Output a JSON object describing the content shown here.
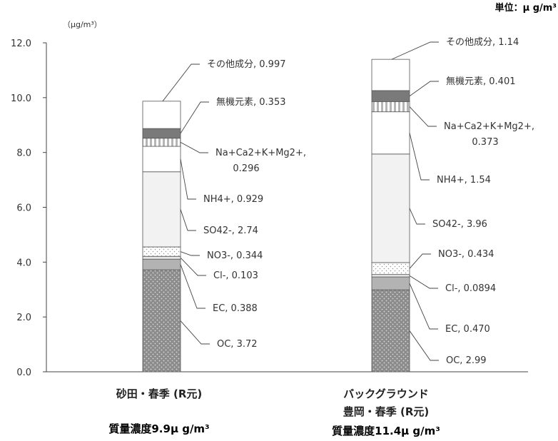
{
  "chart_data": {
    "type": "bar",
    "stacked": true,
    "y_unit_label": "（μg/m³）",
    "unit_label": "単位：μ g/m³",
    "ylim": [
      0,
      12
    ],
    "yticks": [
      "0.0",
      "2.0",
      "4.0",
      "6.0",
      "8.0",
      "10.0",
      "12.0"
    ],
    "categories": [
      {
        "label_lines": [
          "砂田・春季 (R元)"
        ],
        "mass_label": "質量濃度9.9μ g/m³"
      },
      {
        "label_lines": [
          "バックグラウンド",
          "豊岡・春季 (R元)"
        ],
        "mass_label": "質量濃度11.4μ g/m³"
      }
    ],
    "series": [
      {
        "name": "OC",
        "values": [
          3.72,
          2.99
        ],
        "labels": [
          "OC, 3.72",
          "OC, 2.99"
        ],
        "color": "#8c8c8c",
        "pattern": "dots"
      },
      {
        "name": "EC",
        "values": [
          0.388,
          0.47
        ],
        "labels": [
          "EC, 0.388",
          "EC, 0.470"
        ],
        "color": "#b3b3b3",
        "pattern": "none"
      },
      {
        "name": "Cl-",
        "values": [
          0.103,
          0.0894
        ],
        "labels": [
          "Cl-, 0.103",
          "Cl-, 0.0894"
        ],
        "color": "#e6e6e6",
        "pattern": "none"
      },
      {
        "name": "NO3-",
        "values": [
          0.344,
          0.434
        ],
        "labels": [
          "NO3-, 0.344",
          "NO3-, 0.434"
        ],
        "color": "#ffffff",
        "pattern": "fine-dots"
      },
      {
        "name": "SO42-",
        "values": [
          2.74,
          3.96
        ],
        "labels": [
          "SO42-, 2.74",
          "SO42-, 3.96"
        ],
        "color": "#f2f2f2",
        "pattern": "none"
      },
      {
        "name": "NH4+",
        "values": [
          0.929,
          1.54
        ],
        "labels": [
          "NH4+, 0.929",
          "NH4+, 1.54"
        ],
        "color": "#ffffff",
        "pattern": "none"
      },
      {
        "name": "Na+Ca2+K+Mg2+",
        "values": [
          0.296,
          0.373
        ],
        "labels": [
          [
            "Na+Ca2+K+Mg2+,",
            "0.296"
          ],
          [
            "Na+Ca2+K+Mg2+,",
            "0.373"
          ]
        ],
        "color": "#c8c8c8",
        "pattern": "vstripes"
      },
      {
        "name": "無機元素",
        "values": [
          0.353,
          0.401
        ],
        "labels": [
          "無機元素, 0.353",
          "無機元素, 0.401"
        ],
        "color": "#7a7a7a",
        "pattern": "none"
      },
      {
        "name": "その他成分",
        "values": [
          0.997,
          1.14
        ],
        "labels": [
          "その他成分, 0.997",
          "その他成分, 1.14"
        ],
        "color": "#ffffff",
        "pattern": "none"
      }
    ]
  }
}
